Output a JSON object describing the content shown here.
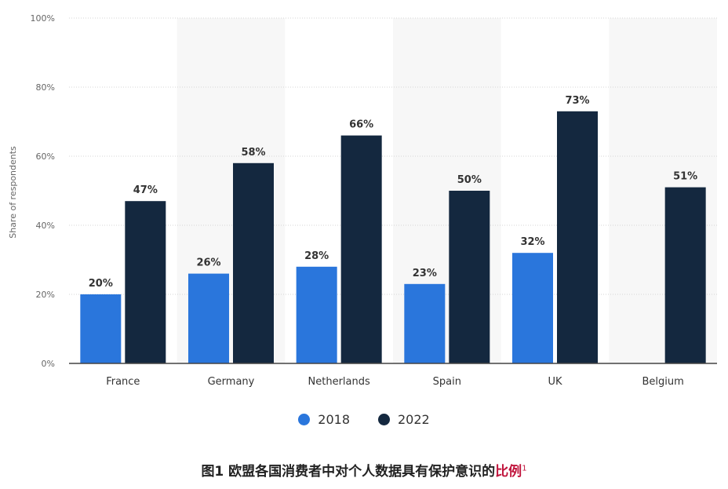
{
  "colors": {
    "series_2018": "#2a76dc",
    "series_2022": "#14283f",
    "band": "#f7f7f7",
    "grid": "#d6d6d6",
    "axis_text": "#666666",
    "label_text": "#333333",
    "caption_highlight": "#c0143c"
  },
  "chart_data": {
    "type": "bar",
    "ylabel": "Share of respondents",
    "ylim": [
      0,
      100
    ],
    "yticks": [
      0,
      20,
      40,
      60,
      80,
      100
    ],
    "ytick_labels": [
      "0%",
      "20%",
      "40%",
      "60%",
      "80%",
      "100%"
    ],
    "categories": [
      "France",
      "Germany",
      "Netherlands",
      "Spain",
      "UK",
      "Belgium"
    ],
    "series": [
      {
        "name": "2018",
        "values": [
          20,
          26,
          28,
          23,
          32,
          null
        ]
      },
      {
        "name": "2022",
        "values": [
          47,
          58,
          66,
          50,
          73,
          51
        ]
      }
    ],
    "data_label_suffix": "%",
    "legend_position": "bottom",
    "grid": true
  },
  "caption": {
    "main": "图1 欧盟各国消费者中对个人数据具有保护意识的",
    "highlight": "比例",
    "superscript": "1"
  }
}
